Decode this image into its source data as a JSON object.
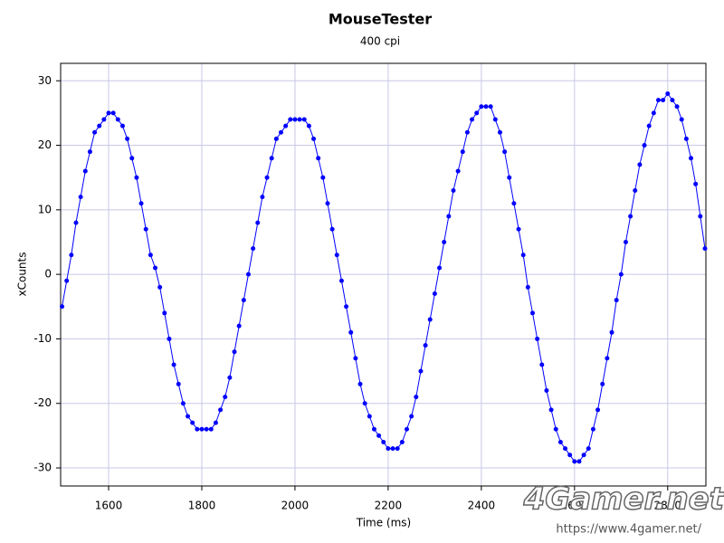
{
  "chart_data": {
    "type": "scatter",
    "title": "MouseTester",
    "subtitle": "400 cpi",
    "x_label": "Time (ms)",
    "y_label": "xCounts",
    "watermark": "4Gamer.net",
    "watermark_url": "https://www.4gamer.net/",
    "xlim": [
      1497,
      2882
    ],
    "ylim": [
      -32.8,
      32.7
    ],
    "xticks": [
      1600,
      1800,
      2000,
      2200,
      2400,
      2600,
      2800
    ],
    "yticks": [
      -30,
      -20,
      -10,
      0,
      10,
      20,
      30
    ],
    "grid": true,
    "x": [
      1500,
      1510,
      1520,
      1530,
      1540,
      1550,
      1560,
      1570,
      1580,
      1590,
      1600,
      1610,
      1620,
      1630,
      1640,
      1650,
      1660,
      1670,
      1680,
      1690,
      1700,
      1710,
      1720,
      1730,
      1740,
      1750,
      1760,
      1770,
      1780,
      1790,
      1800,
      1810,
      1820,
      1830,
      1840,
      1850,
      1860,
      1870,
      1880,
      1890,
      1900,
      1910,
      1920,
      1930,
      1940,
      1950,
      1960,
      1970,
      1980,
      1990,
      2000,
      2010,
      2020,
      2030,
      2040,
      2050,
      2060,
      2070,
      2080,
      2090,
      2100,
      2110,
      2120,
      2130,
      2140,
      2150,
      2160,
      2170,
      2180,
      2190,
      2200,
      2210,
      2220,
      2230,
      2240,
      2250,
      2260,
      2270,
      2280,
      2290,
      2300,
      2310,
      2320,
      2330,
      2340,
      2350,
      2360,
      2370,
      2380,
      2390,
      2400,
      2410,
      2420,
      2430,
      2440,
      2450,
      2460,
      2470,
      2480,
      2490,
      2500,
      2510,
      2520,
      2530,
      2540,
      2550,
      2560,
      2570,
      2580,
      2590,
      2600,
      2610,
      2620,
      2630,
      2640,
      2650,
      2660,
      2670,
      2680,
      2690,
      2700,
      2710,
      2720,
      2730,
      2740,
      2750,
      2760,
      2770,
      2780,
      2790,
      2800,
      2810,
      2820,
      2830,
      2840,
      2850,
      2860,
      2870,
      2880
    ],
    "series": [
      {
        "color": "#0000ff",
        "values": [
          -5,
          -1,
          3,
          8,
          12,
          16,
          19,
          22,
          23,
          24,
          25,
          25,
          24,
          23,
          21,
          18,
          15,
          11,
          7,
          3,
          1,
          -2,
          -6,
          -10,
          -14,
          -17,
          -20,
          -22,
          -23,
          -24,
          -24,
          -24,
          -24,
          -23,
          -21,
          -19,
          -16,
          -12,
          -8,
          -4,
          0,
          4,
          8,
          12,
          15,
          18,
          21,
          22,
          23,
          24,
          24,
          24,
          24,
          23,
          21,
          18,
          15,
          11,
          7,
          3,
          -1,
          -5,
          -9,
          -13,
          -17,
          -20,
          -22,
          -24,
          -25,
          -26,
          -27,
          -27,
          -27,
          -26,
          -24,
          -22,
          -19,
          -15,
          -11,
          -7,
          -3,
          1,
          5,
          9,
          13,
          16,
          19,
          22,
          24,
          25,
          26,
          26,
          26,
          24,
          22,
          19,
          15,
          11,
          7,
          3,
          -2,
          -6,
          -10,
          -14,
          -18,
          -21,
          -24,
          -26,
          -27,
          -28,
          -29,
          -29,
          -28,
          -27,
          -24,
          -21,
          -17,
          -13,
          -9,
          -4,
          0,
          5,
          9,
          13,
          17,
          20,
          23,
          25,
          27,
          27,
          28,
          27,
          26,
          24,
          21,
          18,
          14,
          9,
          4
        ]
      }
    ]
  }
}
